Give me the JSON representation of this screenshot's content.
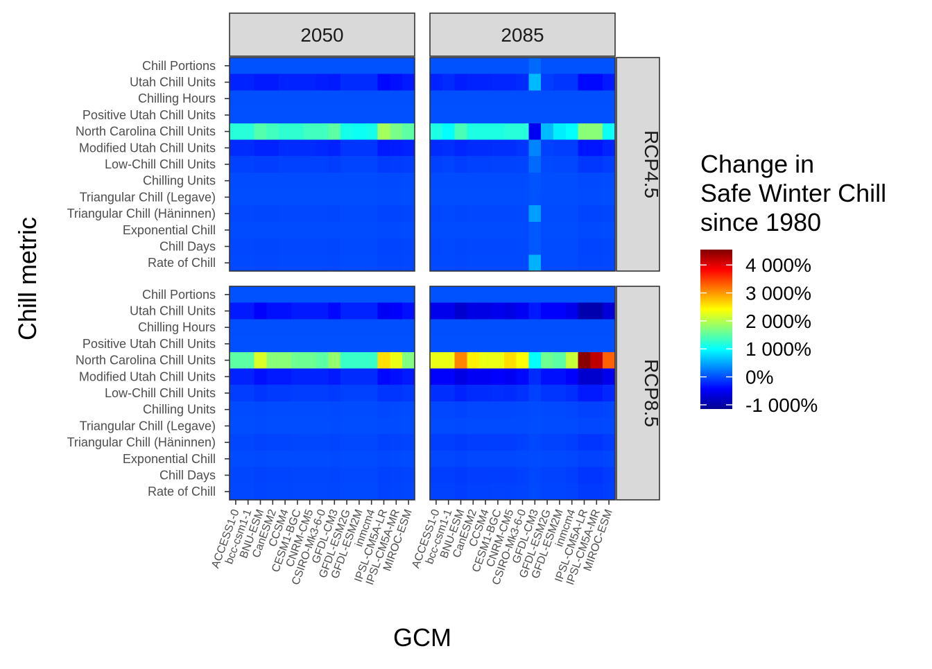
{
  "chart_data": {
    "type": "heatmap",
    "xlabel": "GCM",
    "ylabel": "Chill metric",
    "facet_columns": [
      "2050",
      "2085"
    ],
    "facet_rows": [
      "RCP4.5",
      "RCP8.5"
    ],
    "gcms": [
      "ACCESS1-0",
      "bcc-csm1-1",
      "BNU-ESM",
      "CanESM2",
      "CCSM4",
      "CESM1-BGC",
      "CNRM-CM5",
      "CSIRO-Mk3-6-0",
      "GFDL-CM3",
      "GFDL-ESM2G",
      "GFDL-ESM2M",
      "inmcm4",
      "IPSL-CM5A-LR",
      "IPSL-CM5A-MR",
      "MIROC-ESM"
    ],
    "metrics": [
      "Chill Portions",
      "Utah Chill Units",
      "Chilling Hours",
      "Positive Utah Chill Units",
      "North Carolina Chill Units",
      "Modified Utah Chill Units",
      "Low-Chill Chill Units",
      "Chilling Units",
      "Triangular Chill (Legave)",
      "Triangular Chill (Häninnen)",
      "Exponential Chill",
      "Chill Days",
      "Rate of Chill"
    ],
    "legend": {
      "title_lines": [
        "Change in",
        "Safe Winter Chill",
        "since 1980"
      ],
      "breaks": [
        4000,
        3000,
        2000,
        1000,
        0,
        -1000
      ],
      "labels": [
        "4 000%",
        "3 000%",
        "2 000%",
        "1 000%",
        "0%",
        "-1 000%"
      ],
      "limits": [
        -1150,
        4550
      ],
      "colors": [
        "#00008f",
        "#0000ff",
        "#0080ff",
        "#00ffff",
        "#80ff80",
        "#ffff00",
        "#ff8000",
        "#ff0000",
        "#800000"
      ],
      "placement": "right"
    },
    "panels": [
      {
        "column": "2050",
        "row": "RCP4.5",
        "values": {
          "Chill Portions": [
            20,
            20,
            20,
            20,
            20,
            20,
            20,
            20,
            20,
            20,
            20,
            20,
            20,
            20,
            20
          ],
          "Utah Chill Units": [
            -250,
            -250,
            -300,
            -300,
            -250,
            -250,
            -250,
            -280,
            -300,
            -200,
            -200,
            -200,
            -400,
            -350,
            -300
          ],
          "Chilling Hours": [
            5,
            5,
            5,
            5,
            5,
            5,
            5,
            5,
            5,
            5,
            5,
            5,
            5,
            5,
            5
          ],
          "Positive Utah Chill Units": [
            10,
            10,
            10,
            10,
            10,
            10,
            10,
            10,
            10,
            10,
            10,
            10,
            10,
            10,
            10
          ],
          "North Carolina Chill Units": [
            1200,
            1200,
            1450,
            1350,
            1250,
            1250,
            1350,
            1350,
            1500,
            1100,
            1050,
            1100,
            1900,
            1650,
            1500
          ],
          "Modified Utah Chill Units": [
            -200,
            -200,
            -250,
            -250,
            -200,
            -200,
            -200,
            -220,
            -250,
            -150,
            -150,
            -150,
            -300,
            -280,
            -250
          ],
          "Low-Chill Chill Units": [
            -80,
            -80,
            -100,
            -100,
            -80,
            -80,
            -80,
            -80,
            -100,
            -60,
            -60,
            -60,
            -120,
            -110,
            -100
          ],
          "Chilling Units": [
            -20,
            -20,
            -20,
            -20,
            -20,
            -20,
            -20,
            -20,
            -20,
            -20,
            -20,
            -20,
            -30,
            -30,
            -20
          ],
          "Triangular Chill (Legave)": [
            -10,
            -10,
            -10,
            -10,
            -10,
            -10,
            -10,
            -10,
            -10,
            -10,
            -10,
            -10,
            -20,
            -20,
            -10
          ],
          "Triangular Chill (Häninnen)": [
            -40,
            -40,
            -50,
            -50,
            -40,
            -40,
            -40,
            -40,
            -50,
            -30,
            -30,
            -30,
            -60,
            -60,
            -50
          ],
          "Exponential Chill": [
            -20,
            -20,
            -20,
            -20,
            -20,
            -20,
            -20,
            -20,
            -20,
            -20,
            -20,
            -20,
            -30,
            -30,
            -20
          ],
          "Chill Days": [
            -40,
            -40,
            -50,
            -50,
            -40,
            -40,
            -40,
            -40,
            -50,
            -30,
            -30,
            -30,
            -60,
            -60,
            -50
          ],
          "Rate of Chill": [
            -30,
            -30,
            -40,
            -40,
            -30,
            -30,
            -30,
            -30,
            -40,
            -20,
            -20,
            -20,
            -50,
            -50,
            -40
          ]
        }
      },
      {
        "column": "2085",
        "row": "RCP4.5",
        "values": {
          "Chill Portions": [
            20,
            20,
            20,
            20,
            20,
            20,
            20,
            20,
            150,
            20,
            20,
            20,
            20,
            20,
            20
          ],
          "Utah Chill Units": [
            -250,
            -200,
            -280,
            -250,
            -250,
            -230,
            -230,
            -200,
            600,
            -100,
            -150,
            -150,
            -400,
            -400,
            -300
          ],
          "Chilling Hours": [
            5,
            5,
            5,
            5,
            5,
            5,
            5,
            5,
            5,
            5,
            5,
            5,
            5,
            5,
            5
          ],
          "Positive Utah Chill Units": [
            10,
            10,
            10,
            10,
            10,
            10,
            10,
            10,
            10,
            10,
            10,
            10,
            10,
            10,
            10
          ],
          "North Carolina Chill Units": [
            1150,
            1000,
            1400,
            1150,
            1150,
            1150,
            1200,
            1200,
            -500,
            600,
            900,
            1000,
            1750,
            1750,
            1050
          ],
          "Modified Utah Chill Units": [
            -200,
            -180,
            -230,
            -200,
            -200,
            -180,
            -180,
            -150,
            300,
            -80,
            -100,
            -100,
            -320,
            -320,
            -250
          ],
          "Low-Chill Chill Units": [
            -80,
            -60,
            -100,
            -80,
            -80,
            -70,
            -70,
            -60,
            150,
            -30,
            -40,
            -40,
            -130,
            -130,
            -100
          ],
          "Chilling Units": [
            -20,
            -20,
            -20,
            -20,
            -20,
            -20,
            -20,
            -20,
            30,
            -10,
            -10,
            -10,
            -30,
            -30,
            -20
          ],
          "Triangular Chill (Legave)": [
            -10,
            -10,
            -10,
            -10,
            -10,
            -10,
            -10,
            -10,
            20,
            -10,
            -10,
            -10,
            -20,
            -20,
            -10
          ],
          "Triangular Chill (Häninnen)": [
            -40,
            -30,
            -50,
            -40,
            -40,
            -40,
            -40,
            -30,
            450,
            -20,
            -20,
            -20,
            -60,
            -60,
            -50
          ],
          "Exponential Chill": [
            -20,
            -20,
            -20,
            -20,
            -20,
            -20,
            -20,
            -20,
            50,
            -10,
            -10,
            -10,
            -30,
            -30,
            -20
          ],
          "Chill Days": [
            -40,
            -30,
            -50,
            -40,
            -40,
            -40,
            -40,
            -30,
            50,
            -20,
            -20,
            -20,
            -60,
            -60,
            -50
          ],
          "Rate of Chill": [
            -30,
            -30,
            -40,
            -30,
            -30,
            -30,
            -30,
            -30,
            550,
            -20,
            -20,
            -20,
            -50,
            -50,
            -40
          ]
        }
      },
      {
        "column": "2050",
        "row": "RCP8.5",
        "values": {
          "Chill Portions": [
            20,
            20,
            20,
            20,
            20,
            20,
            20,
            20,
            20,
            20,
            20,
            20,
            20,
            20,
            20
          ],
          "Utah Chill Units": [
            -300,
            -300,
            -450,
            -350,
            -350,
            -300,
            -300,
            -300,
            -400,
            -250,
            -250,
            -250,
            -500,
            -450,
            -350
          ],
          "Chilling Hours": [
            5,
            5,
            5,
            5,
            5,
            5,
            5,
            5,
            5,
            5,
            5,
            5,
            5,
            5,
            5
          ],
          "Positive Utah Chill Units": [
            10,
            10,
            10,
            10,
            10,
            10,
            10,
            10,
            10,
            10,
            10,
            10,
            10,
            10,
            10
          ],
          "North Carolina Chill Units": [
            1500,
            1500,
            2200,
            1750,
            1750,
            1600,
            1600,
            1500,
            1800,
            1300,
            1300,
            1300,
            2600,
            2300,
            1700
          ],
          "Modified Utah Chill Units": [
            -250,
            -250,
            -350,
            -300,
            -300,
            -250,
            -250,
            -250,
            -300,
            -200,
            -200,
            -200,
            -400,
            -350,
            -300
          ],
          "Low-Chill Chill Units": [
            -100,
            -100,
            -150,
            -120,
            -120,
            -100,
            -100,
            -100,
            -120,
            -80,
            -80,
            -80,
            -150,
            -140,
            -120
          ],
          "Chilling Units": [
            -20,
            -20,
            -30,
            -20,
            -20,
            -20,
            -20,
            -20,
            -30,
            -20,
            -20,
            -20,
            -40,
            -30,
            -20
          ],
          "Triangular Chill (Legave)": [
            -10,
            -10,
            -20,
            -10,
            -10,
            -10,
            -10,
            -10,
            -20,
            -10,
            -10,
            -10,
            -20,
            -20,
            -10
          ],
          "Triangular Chill (Häninnen)": [
            -50,
            -50,
            -70,
            -60,
            -60,
            -50,
            -50,
            -50,
            -60,
            -40,
            -40,
            -40,
            -80,
            -70,
            -60
          ],
          "Exponential Chill": [
            -20,
            -20,
            -30,
            -20,
            -20,
            -20,
            -20,
            -20,
            -30,
            -20,
            -20,
            -20,
            -40,
            -30,
            -20
          ],
          "Chill Days": [
            -50,
            -50,
            -70,
            -60,
            -60,
            -50,
            -50,
            -50,
            -60,
            -40,
            -40,
            -40,
            -80,
            -70,
            -60
          ],
          "Rate of Chill": [
            -40,
            -40,
            -60,
            -50,
            -50,
            -40,
            -40,
            -40,
            -50,
            -30,
            -30,
            -30,
            -70,
            -60,
            -50
          ]
        }
      },
      {
        "column": "2085",
        "row": "RCP8.5",
        "values": {
          "Chill Portions": [
            20,
            20,
            20,
            20,
            20,
            20,
            20,
            20,
            20,
            20,
            20,
            20,
            20,
            20,
            20
          ],
          "Utah Chill Units": [
            -550,
            -550,
            -750,
            -600,
            -600,
            -550,
            -600,
            -500,
            -300,
            -450,
            -450,
            -550,
            -950,
            -950,
            -700
          ],
          "Chilling Hours": [
            5,
            5,
            5,
            5,
            5,
            5,
            5,
            5,
            5,
            5,
            5,
            5,
            5,
            5,
            5
          ],
          "Positive Utah Chill Units": [
            10,
            10,
            10,
            10,
            10,
            10,
            10,
            10,
            10,
            10,
            10,
            10,
            10,
            10,
            10
          ],
          "North Carolina Chill Units": [
            2300,
            2300,
            3100,
            2500,
            2300,
            2300,
            2600,
            2400,
            1000,
            1600,
            1500,
            2100,
            4500,
            4200,
            3300
          ],
          "Modified Utah Chill Units": [
            -450,
            -450,
            -600,
            -500,
            -500,
            -450,
            -500,
            -400,
            -200,
            -350,
            -350,
            -450,
            -750,
            -750,
            -550
          ],
          "Low-Chill Chill Units": [
            -180,
            -180,
            -250,
            -200,
            -200,
            -180,
            -200,
            -160,
            -80,
            -140,
            -140,
            -180,
            -300,
            -300,
            -220
          ],
          "Chilling Units": [
            -40,
            -40,
            -60,
            -40,
            -40,
            -40,
            -40,
            -30,
            -20,
            -30,
            -30,
            -40,
            -70,
            -70,
            -50
          ],
          "Triangular Chill (Legave)": [
            -20,
            -20,
            -30,
            -20,
            -20,
            -20,
            -20,
            -20,
            -10,
            -20,
            -20,
            -20,
            -40,
            -40,
            -30
          ],
          "Triangular Chill (Häninnen)": [
            -90,
            -90,
            -120,
            -100,
            -100,
            -90,
            -100,
            -80,
            -40,
            -70,
            -70,
            -90,
            -150,
            -150,
            -110
          ],
          "Exponential Chill": [
            -40,
            -40,
            -60,
            -40,
            -40,
            -40,
            -40,
            -30,
            -20,
            -30,
            -30,
            -40,
            -70,
            -70,
            -50
          ],
          "Chill Days": [
            -90,
            -90,
            -120,
            -100,
            -100,
            -90,
            -100,
            -80,
            -40,
            -70,
            -70,
            -90,
            -150,
            -150,
            -110
          ],
          "Rate of Chill": [
            -70,
            -70,
            -100,
            -80,
            -80,
            -70,
            -80,
            -60,
            -30,
            -60,
            -60,
            -70,
            -120,
            -120,
            -90
          ]
        }
      }
    ]
  }
}
